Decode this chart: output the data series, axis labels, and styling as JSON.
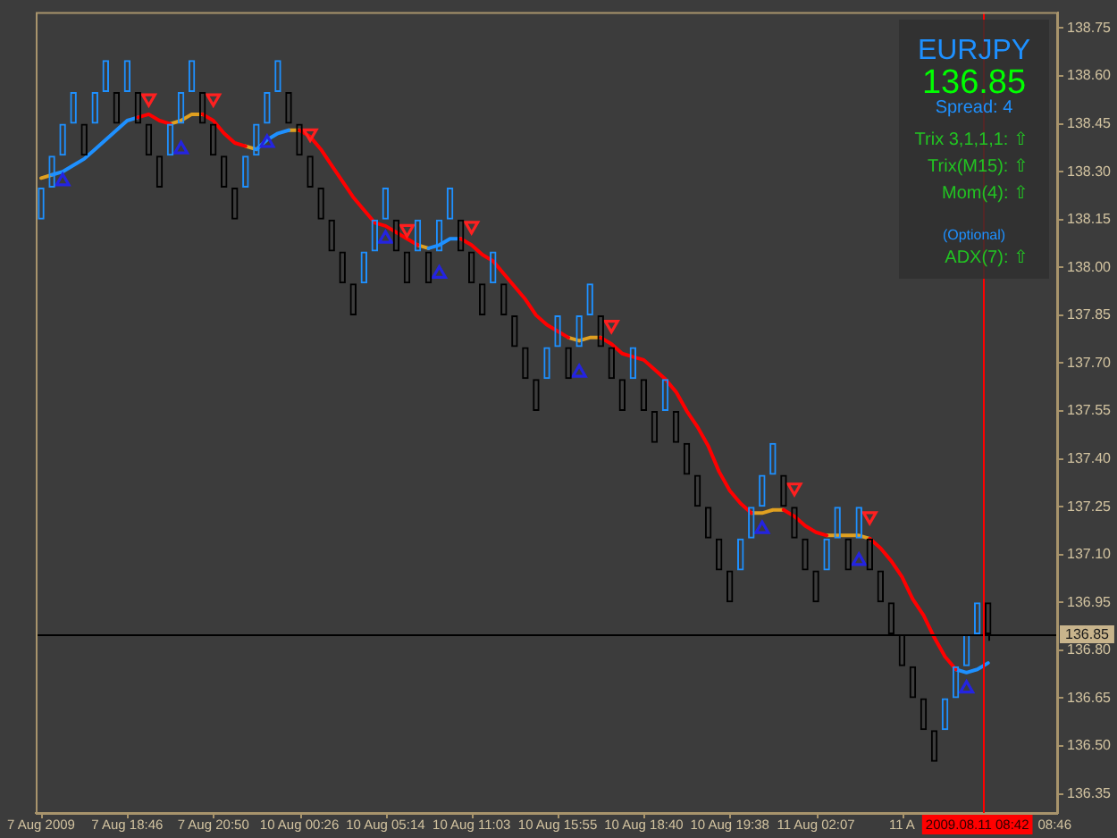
{
  "chart_data": {
    "type": "candlestick",
    "categories": [
      "7 Aug 2009",
      null,
      null,
      null,
      null,
      null,
      null,
      null,
      "7 Aug 18:46",
      null,
      null,
      null,
      null,
      null,
      null,
      null,
      "7 Aug 20:50",
      null,
      null,
      null,
      null,
      null,
      null,
      null,
      "10 Aug 00:26",
      null,
      null,
      null,
      null,
      null,
      null,
      null,
      "10 Aug 05:14",
      null,
      null,
      null,
      null,
      null,
      null,
      null,
      "10 Aug 11:03",
      null,
      null,
      null,
      null,
      null,
      null,
      null,
      "10 Aug 15:55",
      null,
      null,
      null,
      null,
      null,
      null,
      null,
      "10 Aug 18:40",
      null,
      null,
      null,
      null,
      null,
      null,
      null,
      "10 Aug 19:38",
      null,
      null,
      null,
      null,
      null,
      null,
      null,
      "11 Aug 02:07",
      null,
      null,
      null,
      null,
      null,
      null,
      null,
      "11 A",
      null,
      null,
      null,
      null,
      null,
      null,
      "2009.08.11 08:42",
      null,
      null,
      null,
      null,
      null,
      null,
      null
    ],
    "ohlc": [
      [
        138.15,
        138.25,
        138.15,
        138.25
      ],
      [
        138.25,
        138.35,
        138.25,
        138.35
      ],
      [
        138.35,
        138.45,
        138.35,
        138.45
      ],
      [
        138.45,
        138.55,
        138.45,
        138.55
      ],
      [
        138.45,
        138.45,
        138.35,
        138.35
      ],
      [
        138.45,
        138.55,
        138.45,
        138.55
      ],
      [
        138.55,
        138.65,
        138.55,
        138.65
      ],
      [
        138.55,
        138.55,
        138.45,
        138.45
      ],
      [
        138.55,
        138.65,
        138.55,
        138.65
      ],
      [
        138.55,
        138.55,
        138.45,
        138.45
      ],
      [
        138.45,
        138.45,
        138.35,
        138.35
      ],
      [
        138.35,
        138.35,
        138.25,
        138.25
      ],
      [
        138.35,
        138.45,
        138.35,
        138.45
      ],
      [
        138.45,
        138.55,
        138.45,
        138.55
      ],
      [
        138.55,
        138.65,
        138.55,
        138.65
      ],
      [
        138.55,
        138.55,
        138.45,
        138.45
      ],
      [
        138.45,
        138.45,
        138.35,
        138.35
      ],
      [
        138.35,
        138.35,
        138.25,
        138.25
      ],
      [
        138.25,
        138.25,
        138.15,
        138.15
      ],
      [
        138.25,
        138.35,
        138.25,
        138.35
      ],
      [
        138.35,
        138.45,
        138.35,
        138.45
      ],
      [
        138.45,
        138.55,
        138.45,
        138.55
      ],
      [
        138.55,
        138.65,
        138.55,
        138.65
      ],
      [
        138.55,
        138.55,
        138.45,
        138.45
      ],
      [
        138.45,
        138.45,
        138.35,
        138.35
      ],
      [
        138.35,
        138.35,
        138.25,
        138.25
      ],
      [
        138.25,
        138.25,
        138.15,
        138.15
      ],
      [
        138.15,
        138.15,
        138.05,
        138.05
      ],
      [
        138.05,
        138.05,
        137.95,
        137.95
      ],
      [
        137.95,
        137.95,
        137.85,
        137.85
      ],
      [
        137.95,
        138.05,
        137.95,
        138.05
      ],
      [
        138.05,
        138.15,
        138.05,
        138.15
      ],
      [
        138.15,
        138.25,
        138.15,
        138.25
      ],
      [
        138.15,
        138.15,
        138.05,
        138.05
      ],
      [
        138.05,
        138.05,
        137.95,
        137.95
      ],
      [
        138.05,
        138.15,
        138.05,
        138.15
      ],
      [
        138.05,
        138.05,
        137.95,
        137.95
      ],
      [
        138.05,
        138.15,
        138.05,
        138.15
      ],
      [
        138.15,
        138.25,
        138.15,
        138.25
      ],
      [
        138.15,
        138.15,
        138.05,
        138.05
      ],
      [
        138.05,
        138.05,
        137.95,
        137.95
      ],
      [
        137.95,
        137.95,
        137.85,
        137.85
      ],
      [
        137.95,
        138.05,
        137.95,
        138.05
      ],
      [
        137.95,
        137.95,
        137.85,
        137.85
      ],
      [
        137.85,
        137.85,
        137.75,
        137.75
      ],
      [
        137.75,
        137.75,
        137.65,
        137.65
      ],
      [
        137.65,
        137.65,
        137.55,
        137.55
      ],
      [
        137.65,
        137.75,
        137.65,
        137.75
      ],
      [
        137.75,
        137.85,
        137.75,
        137.85
      ],
      [
        137.75,
        137.75,
        137.65,
        137.65
      ],
      [
        137.75,
        137.85,
        137.75,
        137.85
      ],
      [
        137.85,
        137.95,
        137.85,
        137.95
      ],
      [
        137.85,
        137.85,
        137.75,
        137.75
      ],
      [
        137.75,
        137.75,
        137.65,
        137.65
      ],
      [
        137.65,
        137.65,
        137.55,
        137.55
      ],
      [
        137.65,
        137.75,
        137.65,
        137.75
      ],
      [
        137.65,
        137.65,
        137.55,
        137.55
      ],
      [
        137.55,
        137.55,
        137.45,
        137.45
      ],
      [
        137.55,
        137.65,
        137.55,
        137.65
      ],
      [
        137.55,
        137.55,
        137.45,
        137.45
      ],
      [
        137.45,
        137.45,
        137.35,
        137.35
      ],
      [
        137.35,
        137.35,
        137.25,
        137.25
      ],
      [
        137.25,
        137.25,
        137.15,
        137.15
      ],
      [
        137.15,
        137.15,
        137.05,
        137.05
      ],
      [
        137.05,
        137.05,
        136.95,
        136.95
      ],
      [
        137.05,
        137.15,
        137.05,
        137.15
      ],
      [
        137.15,
        137.25,
        137.15,
        137.25
      ],
      [
        137.25,
        137.35,
        137.25,
        137.35
      ],
      [
        137.35,
        137.45,
        137.35,
        137.45
      ],
      [
        137.35,
        137.35,
        137.25,
        137.25
      ],
      [
        137.25,
        137.25,
        137.15,
        137.15
      ],
      [
        137.15,
        137.15,
        137.05,
        137.05
      ],
      [
        137.05,
        137.05,
        136.95,
        136.95
      ],
      [
        137.05,
        137.15,
        137.05,
        137.15
      ],
      [
        137.15,
        137.25,
        137.15,
        137.25
      ],
      [
        137.15,
        137.15,
        137.05,
        137.05
      ],
      [
        137.15,
        137.25,
        137.15,
        137.25
      ],
      [
        137.15,
        137.15,
        137.05,
        137.05
      ],
      [
        137.05,
        137.05,
        136.95,
        136.95
      ],
      [
        136.95,
        136.95,
        136.85,
        136.85
      ],
      [
        136.85,
        136.85,
        136.75,
        136.75
      ],
      [
        136.75,
        136.75,
        136.65,
        136.65
      ],
      [
        136.65,
        136.65,
        136.55,
        136.55
      ],
      [
        136.55,
        136.55,
        136.45,
        136.45
      ],
      [
        136.55,
        136.65,
        136.55,
        136.65
      ],
      [
        136.65,
        136.75,
        136.65,
        136.75
      ],
      [
        136.75,
        136.85,
        136.75,
        136.85
      ],
      [
        136.85,
        136.95,
        136.85,
        136.95
      ],
      [
        136.95,
        136.95,
        136.83,
        136.85
      ],
      null,
      null,
      null,
      null,
      null,
      null
    ],
    "colors": [
      "#1e90ff",
      "#1e90ff",
      "#1e90ff",
      "#1e90ff",
      "#000000",
      "#1e90ff",
      "#1e90ff",
      "#000000",
      "#1e90ff",
      "#000000",
      "#000000",
      "#000000",
      "#1e90ff",
      "#1e90ff",
      "#1e90ff",
      "#000000",
      "#000000",
      "#000000",
      "#000000",
      "#1e90ff",
      "#1e90ff",
      "#1e90ff",
      "#1e90ff",
      "#000000",
      "#000000",
      "#000000",
      "#000000",
      "#000000",
      "#000000",
      "#000000",
      "#1e90ff",
      "#1e90ff",
      "#1e90ff",
      "#000000",
      "#000000",
      "#1e90ff",
      "#000000",
      "#1e90ff",
      "#1e90ff",
      "#000000",
      "#000000",
      "#000000",
      "#1e90ff",
      "#000000",
      "#000000",
      "#000000",
      "#000000",
      "#1e90ff",
      "#1e90ff",
      "#000000",
      "#1e90ff",
      "#1e90ff",
      "#000000",
      "#000000",
      "#000000",
      "#1e90ff",
      "#000000",
      "#000000",
      "#1e90ff",
      "#000000",
      "#000000",
      "#000000",
      "#000000",
      "#000000",
      "#000000",
      "#1e90ff",
      "#1e90ff",
      "#1e90ff",
      "#1e90ff",
      "#000000",
      "#000000",
      "#000000",
      "#000000",
      "#1e90ff",
      "#1e90ff",
      "#000000",
      "#1e90ff",
      "#000000",
      "#000000",
      "#000000",
      "#000000",
      "#000000",
      "#000000",
      "#000000",
      "#1e90ff",
      "#1e90ff",
      "#1e90ff",
      "#1e90ff",
      "#000000",
      null,
      null,
      null,
      null,
      null,
      null
    ],
    "series": [
      {
        "type": "line",
        "color": "#ff0000",
        "values": [
          null,
          null,
          null,
          null,
          null,
          null,
          null,
          null,
          null,
          138.47,
          138.48,
          138.46,
          138.45,
          null,
          null,
          138.48,
          138.46,
          138.42,
          138.39,
          138.38,
          null,
          null,
          null,
          null,
          138.43,
          138.41,
          138.37,
          138.32,
          138.27,
          138.22,
          138.18,
          138.14,
          138.13,
          138.11,
          138.09,
          138.07,
          null,
          null,
          null,
          138.09,
          138.07,
          138.04,
          138.02,
          137.98,
          137.94,
          137.9,
          137.85,
          137.82,
          137.8,
          137.78,
          null,
          null,
          137.78,
          137.76,
          137.73,
          137.72,
          137.71,
          137.68,
          137.65,
          137.61,
          137.55,
          137.5,
          137.44,
          137.36,
          137.3,
          137.26,
          137.23,
          null,
          null,
          137.24,
          137.22,
          137.19,
          137.17,
          137.16,
          null,
          null,
          null,
          137.15,
          137.12,
          137.08,
          137.03,
          136.96,
          136.91,
          136.84,
          136.78,
          136.74,
          null,
          null,
          null,
          null,
          null,
          null,
          null,
          null,
          null
        ]
      },
      {
        "type": "line",
        "color": "#1e90ff",
        "values": [
          null,
          138.29,
          138.3,
          138.32,
          138.34,
          138.37,
          138.4,
          138.43,
          138.46,
          138.47,
          null,
          null,
          null,
          null,
          null,
          null,
          null,
          null,
          null,
          null,
          138.37,
          138.4,
          138.42,
          138.43,
          null,
          null,
          null,
          null,
          null,
          null,
          null,
          null,
          null,
          null,
          null,
          null,
          138.06,
          138.07,
          138.09,
          138.09,
          null,
          null,
          null,
          null,
          null,
          null,
          null,
          null,
          null,
          null,
          null,
          null,
          null,
          null,
          null,
          null,
          null,
          null,
          null,
          null,
          null,
          null,
          null,
          null,
          null,
          null,
          null,
          null,
          null,
          null,
          null,
          null,
          null,
          null,
          null,
          null,
          null,
          null,
          null,
          null,
          null,
          null,
          null,
          null,
          null,
          136.74,
          136.73,
          136.74,
          136.76,
          null,
          null,
          null,
          null,
          null,
          null
        ]
      },
      {
        "type": "line",
        "color": "#e0a020",
        "values": [
          138.28,
          138.29,
          null,
          null,
          null,
          null,
          null,
          null,
          null,
          null,
          null,
          null,
          138.45,
          138.46,
          138.48,
          138.48,
          null,
          null,
          null,
          138.38,
          138.37,
          null,
          null,
          138.43,
          138.43,
          null,
          null,
          null,
          null,
          null,
          null,
          null,
          null,
          null,
          null,
          138.07,
          138.06,
          null,
          null,
          null,
          null,
          null,
          null,
          null,
          null,
          null,
          null,
          null,
          null,
          137.78,
          137.77,
          137.78,
          137.78,
          null,
          null,
          null,
          null,
          null,
          null,
          null,
          null,
          null,
          null,
          null,
          null,
          null,
          137.23,
          137.23,
          137.24,
          137.24,
          null,
          null,
          null,
          137.16,
          137.16,
          137.16,
          137.16,
          137.15,
          null,
          null,
          null,
          null,
          null,
          null,
          null,
          null,
          null,
          null,
          null,
          null,
          null,
          null,
          null,
          null,
          null
        ]
      },
      {
        "type": "scatter",
        "color": "#2424e0",
        "marker": "triangle",
        "values": [
          null,
          null,
          138.27,
          null,
          null,
          null,
          null,
          null,
          null,
          null,
          null,
          null,
          null,
          138.37,
          null,
          null,
          null,
          null,
          null,
          null,
          null,
          138.39,
          null,
          null,
          null,
          null,
          null,
          null,
          null,
          null,
          null,
          null,
          138.09,
          null,
          null,
          null,
          null,
          137.98,
          null,
          null,
          null,
          null,
          null,
          null,
          null,
          null,
          null,
          null,
          null,
          null,
          137.67,
          null,
          null,
          null,
          null,
          null,
          null,
          null,
          null,
          null,
          null,
          null,
          null,
          null,
          null,
          null,
          null,
          137.18,
          null,
          null,
          null,
          null,
          null,
          null,
          null,
          null,
          137.08,
          null,
          null,
          null,
          null,
          null,
          null,
          null,
          null,
          null,
          136.68,
          null,
          null,
          null,
          null,
          null,
          null,
          null,
          null
        ]
      },
      {
        "type": "scatter",
        "color": "#ff2020",
        "marker": "triangle",
        "values": [
          null,
          null,
          null,
          null,
          null,
          null,
          null,
          null,
          null,
          null,
          138.53,
          null,
          null,
          null,
          null,
          null,
          138.53,
          null,
          null,
          null,
          null,
          null,
          null,
          null,
          null,
          138.42,
          null,
          null,
          null,
          null,
          null,
          null,
          null,
          null,
          138.12,
          null,
          null,
          null,
          null,
          null,
          138.13,
          null,
          null,
          null,
          null,
          null,
          null,
          null,
          null,
          null,
          null,
          null,
          null,
          137.82,
          null,
          null,
          null,
          null,
          null,
          null,
          null,
          null,
          null,
          null,
          null,
          null,
          null,
          null,
          null,
          null,
          137.31,
          null,
          null,
          null,
          null,
          null,
          null,
          137.22,
          null,
          null,
          null,
          null,
          null,
          null,
          null,
          null,
          null,
          null,
          null,
          null,
          null,
          null,
          null,
          null,
          null
        ]
      }
    ],
    "ylim": [
      136.29,
      138.8
    ],
    "yticks": [
      136.35,
      {
        "value": 136.5,
        "label": "136.50"
      },
      136.65,
      {
        "value": 136.8,
        "label": "136.80"
      },
      136.95,
      {
        "value": 137.1,
        "label": "137.10"
      },
      137.25,
      {
        "value": 137.4,
        "label": "137.40"
      },
      137.55,
      {
        "value": 137.7,
        "label": "137.70"
      },
      137.85,
      {
        "value": 138,
        "label": "138.00"
      },
      138.15,
      {
        "value": 138.3,
        "label": "138.30"
      },
      138.45,
      {
        "value": 138.6,
        "label": "138.60"
      },
      138.75
    ],
    "ref_lines": [
      {
        "axis": "y",
        "value": 136.85,
        "label": "136.85",
        "color": "#000000"
      },
      {
        "axis": "x",
        "value": "2009.08.11 08:42",
        "color": "#ff0000"
      }
    ],
    "annotations": [
      "EURJPY",
      "136.85",
      "Spread: 4",
      "Trix 3,1,1,1: ⇧",
      "Trix(M15): ⇧",
      "Mom(4): ⇧",
      "(Optional)",
      "ADX(7): ⇧",
      "08:46"
    ]
  }
}
